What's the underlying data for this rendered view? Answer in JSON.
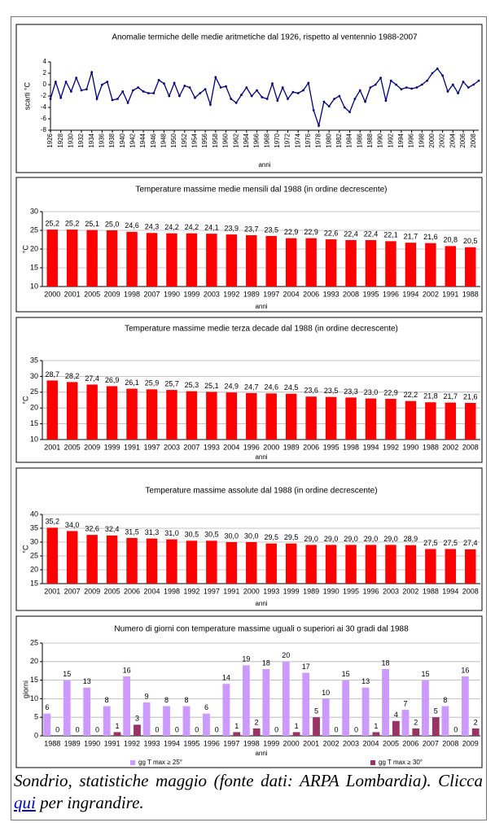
{
  "chart_data": [
    {
      "type": "line",
      "title": "Anomalie termiche delle medie aritmetiche dal 1926, rispetto al ventennio 1988-2007",
      "ylabel": "scarti °C",
      "xlabel": "anni",
      "x": [
        1926,
        1927,
        1928,
        1929,
        1930,
        1931,
        1932,
        1933,
        1934,
        1935,
        1936,
        1937,
        1938,
        1939,
        1940,
        1941,
        1942,
        1943,
        1944,
        1945,
        1946,
        1947,
        1948,
        1949,
        1950,
        1951,
        1952,
        1953,
        1954,
        1955,
        1956,
        1957,
        1958,
        1959,
        1960,
        1961,
        1962,
        1963,
        1964,
        1965,
        1966,
        1967,
        1968,
        1969,
        1970,
        1971,
        1972,
        1973,
        1974,
        1975,
        1976,
        1977,
        1978,
        1979,
        1980,
        1981,
        1982,
        1983,
        1984,
        1985,
        1986,
        1987,
        1988,
        1989,
        1990,
        1991,
        1992,
        1993,
        1994,
        1995,
        1996,
        1997,
        1998,
        1999,
        2000,
        2001,
        2002,
        2003,
        2004,
        2005,
        2006,
        2007,
        2008,
        2009
      ],
      "values": [
        -2.5,
        0.5,
        -2.3,
        0.5,
        -1.2,
        1.2,
        -1.0,
        -0.8,
        2.2,
        -2.5,
        0,
        0.5,
        -2.7,
        -2.5,
        -1.2,
        -3.2,
        -1.0,
        -0.5,
        -1.2,
        -1.5,
        -1.5,
        0.8,
        0.2,
        -2.0,
        0.3,
        -2.0,
        -0.2,
        -0.5,
        -2.3,
        -1.5,
        -0.8,
        -3.5,
        1.3,
        -0.5,
        -0.3,
        -2.5,
        -3.2,
        -1.8,
        -0.5,
        -2.0,
        -1.0,
        -2.2,
        -2.5,
        0.2,
        -2.8,
        -0.5,
        -2.5,
        -1.3,
        -1.5,
        -1.0,
        0.3,
        -4.5,
        -7.2,
        -3.0,
        -3.8,
        -2.5,
        -2.0,
        -4.0,
        -4.8,
        -2.5,
        -1.0,
        -3.0,
        -0.5,
        0.0,
        1.2,
        -2.8,
        0.7,
        0.0,
        -0.8,
        -0.5,
        -0.7,
        -0.5,
        0.0,
        0.7,
        2.0,
        2.8,
        1.6,
        -1.2,
        0.0,
        -1.5,
        0.5,
        -0.5,
        0.0,
        0.7
      ],
      "color": "#000080",
      "xlim": [
        1926,
        2009
      ],
      "ylim": [
        -8,
        4
      ],
      "yticks": [
        -8,
        -6,
        -4,
        -2,
        0,
        2,
        4
      ],
      "xticks": [
        1926,
        1928,
        1930,
        1932,
        1934,
        1936,
        1938,
        1940,
        1942,
        1944,
        1946,
        1948,
        1950,
        1952,
        1954,
        1956,
        1958,
        1960,
        1962,
        1964,
        1966,
        1968,
        1970,
        1972,
        1974,
        1976,
        1978,
        1980,
        1982,
        1984,
        1986,
        1988,
        1990,
        1992,
        1994,
        1996,
        1998,
        2000,
        2002,
        2004,
        2006,
        2008
      ],
      "grid": false
    },
    {
      "type": "bar",
      "title": "Temperature massime medie mensili dal 1988 (in ordine decrescente)",
      "ylabel": "°C",
      "xlabel": "anni",
      "categories": [
        "2000",
        "2001",
        "2005",
        "2009",
        "1998",
        "2007",
        "1990",
        "1999",
        "2003",
        "1992",
        "1989",
        "1997",
        "2004",
        "2006",
        "1993",
        "2008",
        "1995",
        "1996",
        "1994",
        "2002",
        "1991",
        "1988"
      ],
      "values": [
        25.2,
        25.2,
        25.1,
        25.0,
        24.6,
        24.3,
        24.2,
        24.2,
        24.1,
        23.9,
        23.7,
        23.5,
        22.9,
        22.9,
        22.6,
        22.4,
        22.4,
        22.1,
        21.7,
        21.6,
        20.8,
        20.5
      ],
      "value_labels": [
        "25,2",
        "25,2",
        "25,1",
        "25,0",
        "24,6",
        "24,3",
        "24,2",
        "24,2",
        "24,1",
        "23,9",
        "23,7",
        "23,5",
        "22,9",
        "22,9",
        "22,6",
        "22,4",
        "22,4",
        "22,1",
        "21,7",
        "21,6",
        "20,8",
        "20,5"
      ],
      "color": "#ff0000",
      "ylim": [
        10,
        30
      ],
      "yticks": [
        10,
        15,
        20,
        25,
        30
      ],
      "grid": true
    },
    {
      "type": "bar",
      "title": "Temperature massime medie terza decade dal 1988 (in ordine decrescente)",
      "ylabel": "°C",
      "xlabel": "anni",
      "categories": [
        "2001",
        "2005",
        "2009",
        "1999",
        "1991",
        "1997",
        "2003",
        "2007",
        "1993",
        "2004",
        "1996",
        "2000",
        "1989",
        "2006",
        "1995",
        "1998",
        "1994",
        "1992",
        "1990",
        "1988",
        "2002",
        "2008"
      ],
      "values": [
        28.7,
        28.2,
        27.4,
        26.9,
        26.1,
        25.9,
        25.7,
        25.3,
        25.1,
        24.9,
        24.7,
        24.6,
        24.5,
        23.6,
        23.5,
        23.3,
        23.0,
        22.9,
        22.2,
        21.8,
        21.7,
        21.6
      ],
      "value_labels": [
        "28,7",
        "28,2",
        "27,4",
        "26,9",
        "26,1",
        "25,9",
        "25,7",
        "25,3",
        "25,1",
        "24,9",
        "24,7",
        "24,6",
        "24,5",
        "23,6",
        "23,5",
        "23,3",
        "23,0",
        "22,9",
        "22,2",
        "21,8",
        "21,7",
        "21,6"
      ],
      "color": "#ff0000",
      "ylim": [
        10,
        35
      ],
      "yticks": [
        10,
        15,
        20,
        25,
        30,
        35
      ],
      "grid": true
    },
    {
      "type": "bar",
      "title": "Temperature massime assolute dal 1988 (in ordine decrescente)",
      "ylabel": "°C",
      "xlabel": "anni",
      "categories": [
        "2001",
        "2007",
        "2009",
        "2005",
        "2006",
        "2004",
        "1998",
        "1992",
        "1997",
        "1991",
        "2000",
        "1993",
        "1999",
        "1989",
        "1990",
        "1995",
        "1996",
        "2003",
        "2002",
        "1988",
        "1994",
        "2008"
      ],
      "values": [
        35.2,
        34.0,
        32.6,
        32.4,
        31.5,
        31.3,
        31.0,
        30.5,
        30.5,
        30.0,
        30.0,
        29.5,
        29.5,
        29.0,
        29.0,
        29.0,
        29.0,
        29.0,
        28.9,
        27.5,
        27.5,
        27.4
      ],
      "value_labels": [
        "35,2",
        "34,0",
        "32,6",
        "32,4",
        "31,5",
        "31,3",
        "31,0",
        "30,5",
        "30,5",
        "30,0",
        "30,0",
        "29,5",
        "29,5",
        "29,0",
        "29,0",
        "29,0",
        "29,0",
        "29,0",
        "28,9",
        "27,5",
        "27,5",
        "27,4"
      ],
      "color": "#ff0000",
      "ylim": [
        15,
        40
      ],
      "yticks": [
        15,
        20,
        25,
        30,
        35,
        40
      ],
      "grid": true
    },
    {
      "type": "bar",
      "title": "Numero di giorni con temperature massime uguali o superiori ai 30 gradi dal 1988",
      "ylabel": "giorni",
      "xlabel": "anni",
      "categories": [
        "1988",
        "1989",
        "1990",
        "1991",
        "1992",
        "1993",
        "1994",
        "1995",
        "1996",
        "1997",
        "1998",
        "1999",
        "2000",
        "2001",
        "2002",
        "2003",
        "2004",
        "2005",
        "2006",
        "2007",
        "2008",
        "2009"
      ],
      "series": [
        {
          "name": "gg T max ≥ 25°",
          "color": "#cc99ff",
          "values": [
            6,
            15,
            13,
            8,
            16,
            9,
            8,
            8,
            6,
            14,
            19,
            18,
            20,
            17,
            10,
            15,
            13,
            18,
            7,
            15,
            8,
            16
          ]
        },
        {
          "name": "gg T max ≥ 30°",
          "color": "#993366",
          "values": [
            0,
            0,
            0,
            1,
            3,
            0,
            0,
            0,
            0,
            1,
            2,
            0,
            1,
            5,
            0,
            0,
            1,
            4,
            2,
            5,
            0,
            2
          ]
        }
      ],
      "ylim": [
        0,
        25
      ],
      "yticks": [
        0,
        5,
        10,
        15,
        20,
        25
      ],
      "grid": true,
      "legend": "bottom"
    }
  ],
  "caption": {
    "before": "Sondrio, statistiche maggio (fonte dati: ARPA Lombardia). Clicca ",
    "link": "qui",
    "after": " per ingrandire."
  }
}
